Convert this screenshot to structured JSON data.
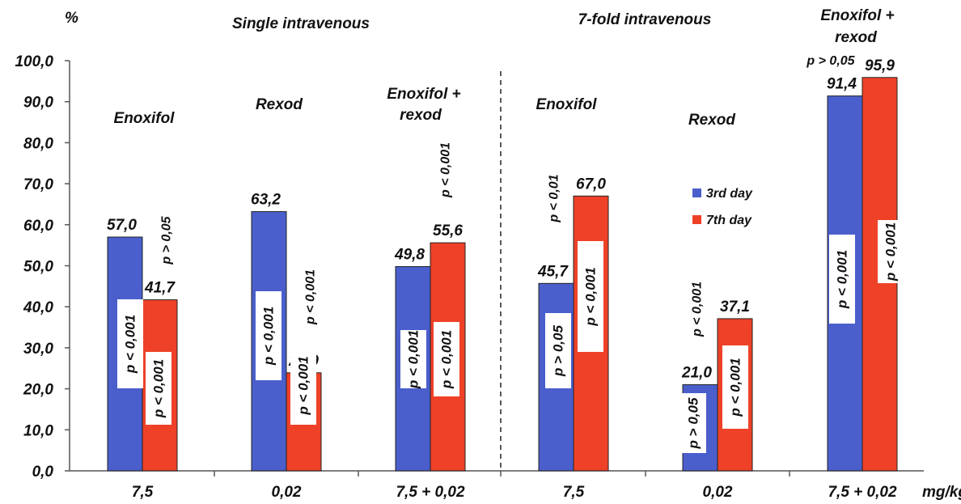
{
  "chart_data": {
    "type": "bar",
    "ylabel": "%",
    "xunit": "mg/kg",
    "ylim": [
      0,
      100
    ],
    "yticks": [
      "0,0",
      "10,0",
      "20,0",
      "30,0",
      "40,0",
      "50,0",
      "60,0",
      "70,0",
      "80,0",
      "90,0",
      "100,0"
    ],
    "categories": [
      "7,5",
      "0,02",
      "7,5 + 0,02",
      "7,5",
      "0,02",
      "7,5 + 0,02"
    ],
    "sections": [
      "Single intravenous",
      "7-fold intravenous"
    ],
    "group_titles": [
      "Enoxifol",
      "Rexod",
      "Enoxifol + rexod",
      "Enoxifol",
      "Rexod",
      "Enoxifol + rexod"
    ],
    "legend_position": "center-right",
    "series": [
      {
        "name": "3rd day",
        "color": "#4a5fcc",
        "values": [
          57.0,
          63.2,
          49.8,
          45.7,
          21.0,
          91.4
        ],
        "labels": [
          "57,0",
          "63,2",
          "49,8",
          "45,7",
          "21,0",
          "91,4"
        ],
        "p_inside": [
          "p < 0,001",
          "p < 0,001",
          "p < 0,001",
          "p > 0,05",
          "p > 0,05",
          "p < 0,001"
        ]
      },
      {
        "name": "7th day",
        "color": "#ee4127",
        "values": [
          41.7,
          23.9,
          55.6,
          67.0,
          37.1,
          95.9
        ],
        "labels": [
          "41,7",
          "23,9",
          "55,6",
          "67,0",
          "37,1",
          "95,9"
        ],
        "p_inside": [
          "p < 0,001",
          "p < 0,001",
          "p < 0,001",
          "p < 0,001",
          "p < 0,001",
          "p < 0,001"
        ]
      }
    ],
    "p_between": [
      "p > 0,05",
      "p < 0,001",
      "p < 0,001",
      "p < 0,01",
      "p < 0,001",
      "p > 0,05"
    ]
  }
}
